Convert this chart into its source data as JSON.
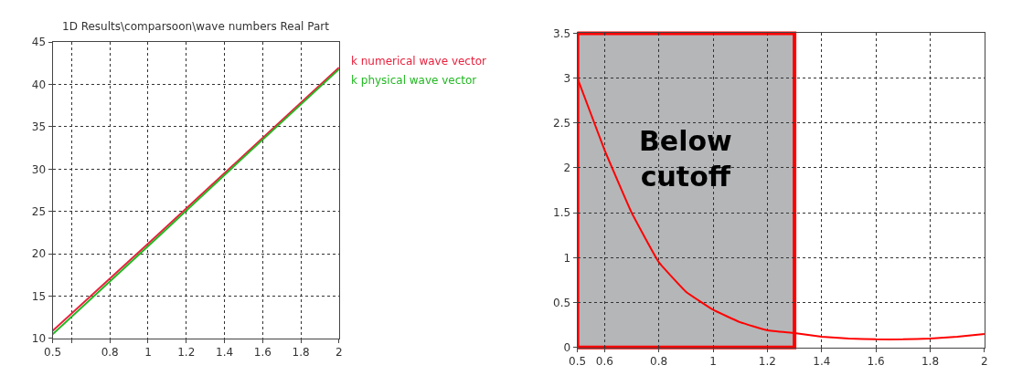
{
  "chart_data": [
    {
      "type": "line",
      "title": "1D Results\\comparsoon\\wave numbers Real Part",
      "x": [
        0.5,
        1,
        1.5,
        2
      ],
      "series": [
        {
          "name": "k numerical wave vector",
          "color": "#e8203c",
          "values": [
            10.9,
            21.2,
            31.6,
            42.0
          ]
        },
        {
          "name": "k physical wave vector",
          "color": "#22b822",
          "values": [
            10.5,
            20.9,
            31.4,
            41.8
          ]
        }
      ],
      "xlim": [
        0.5,
        2
      ],
      "xticks": [
        0.5,
        {
          "value": 0.6,
          "label": null
        },
        0.8,
        1,
        1.2,
        1.4,
        1.6,
        1.8,
        2
      ],
      "ylim": [
        10,
        45
      ],
      "yticks": [
        10,
        15,
        20,
        25,
        30,
        35,
        40,
        45
      ],
      "grid": true,
      "marker": "none",
      "line_style": "solid"
    },
    {
      "type": "line",
      "x": [
        0.5,
        0.55,
        0.6,
        0.7,
        0.8,
        0.9,
        1.0,
        1.1,
        1.2,
        1.3,
        1.4,
        1.5,
        1.6,
        1.7,
        1.8,
        1.9,
        2.0
      ],
      "series": [
        {
          "color": "#ff0000",
          "values": [
            3.0,
            2.6,
            2.2,
            1.5,
            0.95,
            0.62,
            0.42,
            0.28,
            0.19,
            0.16,
            0.12,
            0.1,
            0.09,
            0.09,
            0.1,
            0.12,
            0.15
          ]
        }
      ],
      "xlim": [
        0.5,
        2
      ],
      "xticks": [
        0.5,
        0.6,
        0.8,
        1,
        1.2,
        1.4,
        1.6,
        1.8,
        2
      ],
      "ylim": [
        0,
        3.5
      ],
      "yticks": [
        0,
        0.5,
        1,
        1.5,
        2,
        2.5,
        3,
        3.5
      ],
      "grid": true,
      "marker": "none",
      "line_style": "solid",
      "bands": [
        {
          "axis": "x",
          "from": 0.5,
          "to": 1.3,
          "label": "Below cutoff",
          "color": "#b4b6b8"
        }
      ]
    }
  ]
}
